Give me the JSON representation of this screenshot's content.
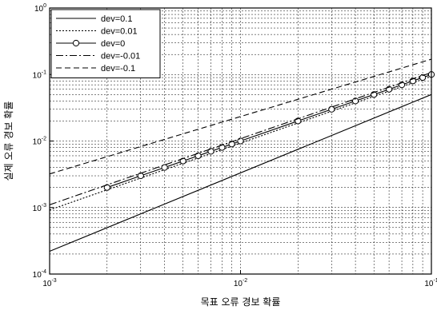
{
  "chart_data": {
    "type": "line",
    "title": "",
    "xlabel": "목표 오류 경보 확률",
    "ylabel": "실제 오류 경보 확률",
    "xscale": "log",
    "yscale": "log",
    "xlim": [
      0.001,
      0.1
    ],
    "ylim": [
      0.0001,
      1
    ],
    "grid": true,
    "x_ticks": [
      {
        "base": "10",
        "exp": "-3"
      },
      {
        "base": "10",
        "exp": "-2"
      },
      {
        "base": "10",
        "exp": "-1"
      }
    ],
    "y_ticks": [
      {
        "base": "10",
        "exp": "-4"
      },
      {
        "base": "10",
        "exp": "-3"
      },
      {
        "base": "10",
        "exp": "-2"
      },
      {
        "base": "10",
        "exp": "-1"
      },
      {
        "base": "10",
        "exp": "0"
      }
    ],
    "legend_position": "top-left",
    "series": [
      {
        "name": "dev=0.1",
        "style": "solid",
        "marker": "none",
        "x": [
          0.001,
          0.1
        ],
        "y": [
          0.00022,
          0.05
        ]
      },
      {
        "name": "dev=0.01",
        "style": "dotted",
        "marker": "none",
        "x": [
          0.001,
          0.1
        ],
        "y": [
          0.00092,
          0.094
        ]
      },
      {
        "name": "dev=0",
        "style": "solid",
        "marker": "circle",
        "x": [
          0.002,
          0.003,
          0.004,
          0.005,
          0.006,
          0.007,
          0.008,
          0.009,
          0.01,
          0.02,
          0.03,
          0.04,
          0.05,
          0.06,
          0.07,
          0.08,
          0.09,
          0.1
        ],
        "y": [
          0.002,
          0.003,
          0.004,
          0.005,
          0.006,
          0.007,
          0.008,
          0.009,
          0.01,
          0.02,
          0.03,
          0.04,
          0.05,
          0.06,
          0.07,
          0.08,
          0.09,
          0.1
        ]
      },
      {
        "name": "dev=-0.01",
        "style": "dashdot",
        "marker": "none",
        "x": [
          0.001,
          0.1
        ],
        "y": [
          0.0011,
          0.107
        ]
      },
      {
        "name": "dev=-0.1",
        "style": "dashed",
        "marker": "none",
        "x": [
          0.001,
          0.1
        ],
        "y": [
          0.0032,
          0.17
        ]
      }
    ]
  }
}
